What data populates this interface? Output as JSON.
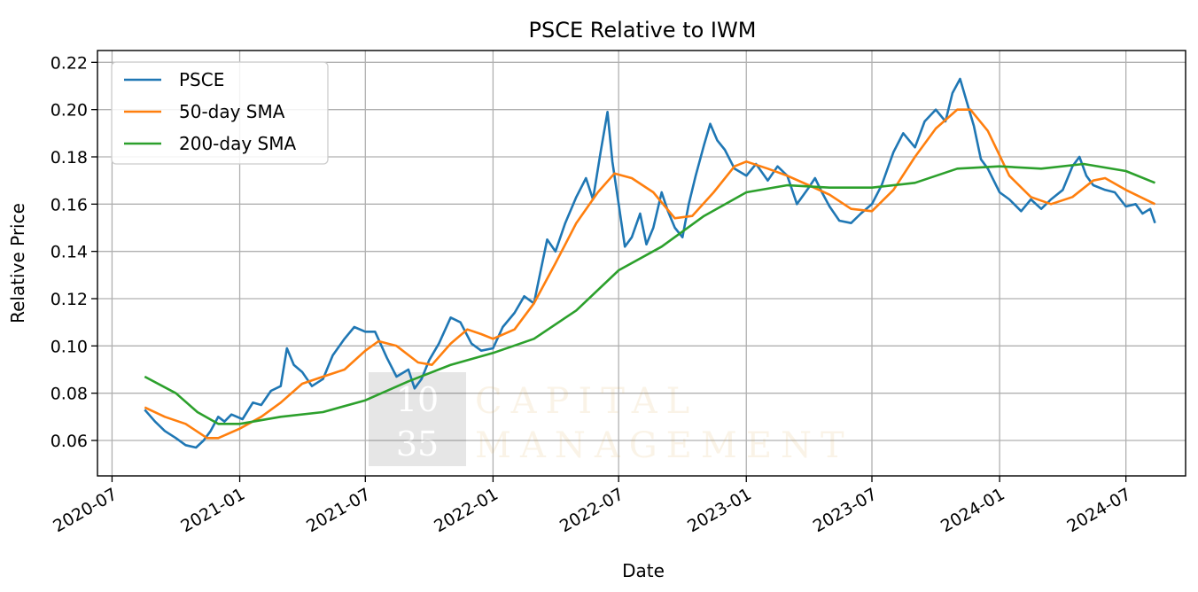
{
  "chart_data": {
    "type": "line",
    "title": "PSCE Relative to IWM",
    "xlabel": "Date",
    "ylabel": "Relative Price",
    "ylim": [
      0.045,
      0.225
    ],
    "xlim": [
      "2020-06-10",
      "2024-09-25"
    ],
    "grid": true,
    "legend_position": "top-left",
    "x_ticks": [
      "2020-07",
      "2021-01",
      "2021-07",
      "2022-01",
      "2022-07",
      "2023-01",
      "2023-07",
      "2024-01",
      "2024-07"
    ],
    "y_ticks": [
      "0.06",
      "0.08",
      "0.10",
      "0.12",
      "0.14",
      "0.16",
      "0.18",
      "0.20",
      "0.22"
    ],
    "watermark": {
      "logo_top": "10",
      "logo_bottom": "35",
      "line1": "CAPITAL",
      "line2": "MANAGEMENT"
    },
    "series": [
      {
        "name": "PSCE",
        "color": "#1f77b4",
        "points": [
          [
            "2020-08-17",
            0.073
          ],
          [
            "2020-09-01",
            0.068
          ],
          [
            "2020-09-15",
            0.064
          ],
          [
            "2020-10-01",
            0.061
          ],
          [
            "2020-10-15",
            0.058
          ],
          [
            "2020-10-30",
            0.057
          ],
          [
            "2020-11-10",
            0.06
          ],
          [
            "2020-11-20",
            0.064
          ],
          [
            "2020-12-01",
            0.07
          ],
          [
            "2020-12-10",
            0.068
          ],
          [
            "2020-12-20",
            0.071
          ],
          [
            "2021-01-05",
            0.069
          ],
          [
            "2021-01-20",
            0.076
          ],
          [
            "2021-02-01",
            0.075
          ],
          [
            "2021-02-15",
            0.081
          ],
          [
            "2021-03-01",
            0.083
          ],
          [
            "2021-03-10",
            0.099
          ],
          [
            "2021-03-20",
            0.092
          ],
          [
            "2021-04-01",
            0.089
          ],
          [
            "2021-04-15",
            0.083
          ],
          [
            "2021-05-01",
            0.086
          ],
          [
            "2021-05-15",
            0.096
          ],
          [
            "2021-06-01",
            0.103
          ],
          [
            "2021-06-15",
            0.108
          ],
          [
            "2021-07-01",
            0.106
          ],
          [
            "2021-07-15",
            0.106
          ],
          [
            "2021-08-01",
            0.095
          ],
          [
            "2021-08-15",
            0.087
          ],
          [
            "2021-09-01",
            0.09
          ],
          [
            "2021-09-10",
            0.082
          ],
          [
            "2021-09-20",
            0.086
          ],
          [
            "2021-10-01",
            0.094
          ],
          [
            "2021-10-15",
            0.101
          ],
          [
            "2021-11-01",
            0.112
          ],
          [
            "2021-11-15",
            0.11
          ],
          [
            "2021-12-01",
            0.101
          ],
          [
            "2021-12-15",
            0.098
          ],
          [
            "2022-01-01",
            0.099
          ],
          [
            "2022-01-15",
            0.108
          ],
          [
            "2022-02-01",
            0.114
          ],
          [
            "2022-02-15",
            0.121
          ],
          [
            "2022-03-01",
            0.118
          ],
          [
            "2022-03-10",
            0.131
          ],
          [
            "2022-03-20",
            0.145
          ],
          [
            "2022-04-01",
            0.14
          ],
          [
            "2022-04-15",
            0.152
          ],
          [
            "2022-05-01",
            0.163
          ],
          [
            "2022-05-15",
            0.171
          ],
          [
            "2022-05-25",
            0.162
          ],
          [
            "2022-06-05",
            0.182
          ],
          [
            "2022-06-15",
            0.199
          ],
          [
            "2022-06-22",
            0.178
          ],
          [
            "2022-07-01",
            0.16
          ],
          [
            "2022-07-10",
            0.142
          ],
          [
            "2022-07-20",
            0.146
          ],
          [
            "2022-08-01",
            0.156
          ],
          [
            "2022-08-10",
            0.143
          ],
          [
            "2022-08-20",
            0.15
          ],
          [
            "2022-09-01",
            0.165
          ],
          [
            "2022-09-10",
            0.157
          ],
          [
            "2022-09-20",
            0.15
          ],
          [
            "2022-10-01",
            0.146
          ],
          [
            "2022-10-10",
            0.16
          ],
          [
            "2022-10-20",
            0.172
          ],
          [
            "2022-11-01",
            0.185
          ],
          [
            "2022-11-10",
            0.194
          ],
          [
            "2022-11-20",
            0.187
          ],
          [
            "2022-12-01",
            0.183
          ],
          [
            "2022-12-15",
            0.175
          ],
          [
            "2023-01-01",
            0.172
          ],
          [
            "2023-01-15",
            0.177
          ],
          [
            "2023-02-01",
            0.17
          ],
          [
            "2023-02-15",
            0.176
          ],
          [
            "2023-03-01",
            0.172
          ],
          [
            "2023-03-15",
            0.16
          ],
          [
            "2023-04-01",
            0.167
          ],
          [
            "2023-04-10",
            0.171
          ],
          [
            "2023-04-20",
            0.165
          ],
          [
            "2023-05-01",
            0.159
          ],
          [
            "2023-05-15",
            0.153
          ],
          [
            "2023-06-01",
            0.152
          ],
          [
            "2023-06-15",
            0.156
          ],
          [
            "2023-07-01",
            0.16
          ],
          [
            "2023-07-15",
            0.168
          ],
          [
            "2023-08-01",
            0.182
          ],
          [
            "2023-08-15",
            0.19
          ],
          [
            "2023-09-01",
            0.184
          ],
          [
            "2023-09-15",
            0.195
          ],
          [
            "2023-10-01",
            0.2
          ],
          [
            "2023-10-15",
            0.195
          ],
          [
            "2023-10-25",
            0.207
          ],
          [
            "2023-11-05",
            0.213
          ],
          [
            "2023-11-15",
            0.203
          ],
          [
            "2023-11-25",
            0.193
          ],
          [
            "2023-12-05",
            0.179
          ],
          [
            "2023-12-15",
            0.175
          ],
          [
            "2024-01-01",
            0.165
          ],
          [
            "2024-01-15",
            0.162
          ],
          [
            "2024-02-01",
            0.157
          ],
          [
            "2024-02-15",
            0.162
          ],
          [
            "2024-03-01",
            0.158
          ],
          [
            "2024-03-15",
            0.162
          ],
          [
            "2024-04-01",
            0.166
          ],
          [
            "2024-04-15",
            0.176
          ],
          [
            "2024-04-25",
            0.18
          ],
          [
            "2024-05-05",
            0.172
          ],
          [
            "2024-05-15",
            0.168
          ],
          [
            "2024-06-01",
            0.166
          ],
          [
            "2024-06-15",
            0.165
          ],
          [
            "2024-07-01",
            0.159
          ],
          [
            "2024-07-15",
            0.16
          ],
          [
            "2024-07-25",
            0.156
          ],
          [
            "2024-08-05",
            0.158
          ],
          [
            "2024-08-12",
            0.152
          ]
        ]
      },
      {
        "name": "50-day SMA",
        "color": "#ff7f0e",
        "points": [
          [
            "2020-08-17",
            0.074
          ],
          [
            "2020-09-15",
            0.07
          ],
          [
            "2020-10-15",
            0.067
          ],
          [
            "2020-11-15",
            0.061
          ],
          [
            "2020-12-01",
            0.061
          ],
          [
            "2021-01-01",
            0.065
          ],
          [
            "2021-02-01",
            0.07
          ],
          [
            "2021-03-01",
            0.076
          ],
          [
            "2021-04-01",
            0.084
          ],
          [
            "2021-05-01",
            0.087
          ],
          [
            "2021-06-01",
            0.09
          ],
          [
            "2021-07-01",
            0.098
          ],
          [
            "2021-07-20",
            0.102
          ],
          [
            "2021-08-15",
            0.1
          ],
          [
            "2021-09-15",
            0.093
          ],
          [
            "2021-10-05",
            0.092
          ],
          [
            "2021-11-01",
            0.101
          ],
          [
            "2021-11-25",
            0.107
          ],
          [
            "2021-12-15",
            0.105
          ],
          [
            "2022-01-01",
            0.103
          ],
          [
            "2022-02-01",
            0.107
          ],
          [
            "2022-03-01",
            0.118
          ],
          [
            "2022-04-01",
            0.135
          ],
          [
            "2022-05-01",
            0.152
          ],
          [
            "2022-06-01",
            0.165
          ],
          [
            "2022-06-25",
            0.173
          ],
          [
            "2022-07-20",
            0.171
          ],
          [
            "2022-08-20",
            0.165
          ],
          [
            "2022-09-20",
            0.154
          ],
          [
            "2022-10-15",
            0.155
          ],
          [
            "2022-11-15",
            0.165
          ],
          [
            "2022-12-15",
            0.176
          ],
          [
            "2023-01-01",
            0.178
          ],
          [
            "2023-02-01",
            0.175
          ],
          [
            "2023-03-01",
            0.172
          ],
          [
            "2023-04-01",
            0.168
          ],
          [
            "2023-05-01",
            0.164
          ],
          [
            "2023-06-01",
            0.158
          ],
          [
            "2023-07-01",
            0.157
          ],
          [
            "2023-08-01",
            0.166
          ],
          [
            "2023-09-01",
            0.18
          ],
          [
            "2023-10-01",
            0.192
          ],
          [
            "2023-11-01",
            0.2
          ],
          [
            "2023-11-20",
            0.2
          ],
          [
            "2023-12-15",
            0.191
          ],
          [
            "2024-01-15",
            0.172
          ],
          [
            "2024-02-15",
            0.163
          ],
          [
            "2024-03-15",
            0.16
          ],
          [
            "2024-04-15",
            0.163
          ],
          [
            "2024-05-15",
            0.17
          ],
          [
            "2024-06-01",
            0.171
          ],
          [
            "2024-07-01",
            0.166
          ],
          [
            "2024-08-12",
            0.16
          ]
        ]
      },
      {
        "name": "200-day SMA",
        "color": "#2ca02c",
        "points": [
          [
            "2020-08-17",
            0.087
          ],
          [
            "2020-10-01",
            0.08
          ],
          [
            "2020-11-01",
            0.072
          ],
          [
            "2020-12-01",
            0.067
          ],
          [
            "2021-01-01",
            0.067
          ],
          [
            "2021-03-01",
            0.07
          ],
          [
            "2021-05-01",
            0.072
          ],
          [
            "2021-07-01",
            0.077
          ],
          [
            "2021-09-01",
            0.085
          ],
          [
            "2021-11-01",
            0.092
          ],
          [
            "2022-01-01",
            0.097
          ],
          [
            "2022-03-01",
            0.103
          ],
          [
            "2022-05-01",
            0.115
          ],
          [
            "2022-07-01",
            0.132
          ],
          [
            "2022-09-01",
            0.142
          ],
          [
            "2022-11-01",
            0.155
          ],
          [
            "2023-01-01",
            0.165
          ],
          [
            "2023-03-01",
            0.168
          ],
          [
            "2023-05-01",
            0.167
          ],
          [
            "2023-07-01",
            0.167
          ],
          [
            "2023-09-01",
            0.169
          ],
          [
            "2023-11-01",
            0.175
          ],
          [
            "2024-01-01",
            0.176
          ],
          [
            "2024-03-01",
            0.175
          ],
          [
            "2024-05-01",
            0.177
          ],
          [
            "2024-07-01",
            0.174
          ],
          [
            "2024-08-12",
            0.169
          ]
        ]
      }
    ]
  }
}
